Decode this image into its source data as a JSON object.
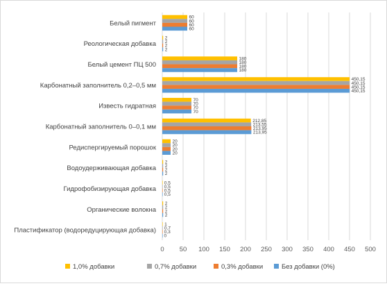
{
  "chart_data": {
    "type": "bar",
    "orientation": "horizontal",
    "title": "",
    "xlabel": "",
    "ylabel": "",
    "xlim": [
      0,
      500
    ],
    "xticks": [
      0,
      50,
      100,
      150,
      200,
      250,
      300,
      350,
      400,
      450,
      500
    ],
    "grid": true,
    "legend_position": "bottom",
    "categories": [
      "Белый пигмент",
      "Реологическая добавка",
      "Белый цемент ПЦ 500",
      "Карбонатный заполнитель 0,2–0,5 мм",
      "Известь гидратная",
      "Карбонатный заполнитель 0–0,1 мм",
      "Редиспергируемый порошок",
      "Водоудерживающая добавка",
      "Гидрофобизирующая добавка",
      "Органические волокна",
      "Пластификатор (водоредуцирующая добавка)"
    ],
    "series": [
      {
        "name": "1,0% добавки",
        "color": "#FFC000",
        "values": [
          60,
          2,
          180,
          450.15,
          70,
          212.85,
          20,
          2,
          0.5,
          2,
          1
        ],
        "labels": [
          "60",
          "2",
          "180",
          "450,15",
          "70",
          "212,85",
          "20",
          "2",
          "0,5",
          "2",
          "1"
        ]
      },
      {
        "name": "0,7% добавки",
        "color": "#A5A5A5",
        "values": [
          60,
          2,
          180,
          450.15,
          70,
          213.55,
          20,
          2,
          0.5,
          2,
          0.7
        ],
        "labels": [
          "60",
          "2",
          "180",
          "450,15",
          "70",
          "213,55",
          "20",
          "2",
          "0,5",
          "2",
          "0,7"
        ]
      },
      {
        "name": "0,3% добавки",
        "color": "#ED7D31",
        "values": [
          60,
          2,
          180,
          450.15,
          70,
          213.95,
          20,
          2,
          0.5,
          2,
          0.3
        ],
        "labels": [
          "60",
          "2",
          "180",
          "450,15",
          "70",
          "213,95",
          "20",
          "2",
          "0,5",
          "2",
          "0,3"
        ]
      },
      {
        "name": "Без добавки (0%)",
        "color": "#5B9BD5",
        "values": [
          60,
          2,
          180,
          450.15,
          70,
          213.95,
          20,
          2,
          0.5,
          2,
          0
        ],
        "labels": [
          "60",
          "2",
          "180",
          "450,15",
          "70",
          "213,95",
          "20",
          "2",
          "0,5",
          "2",
          "0"
        ]
      }
    ]
  }
}
